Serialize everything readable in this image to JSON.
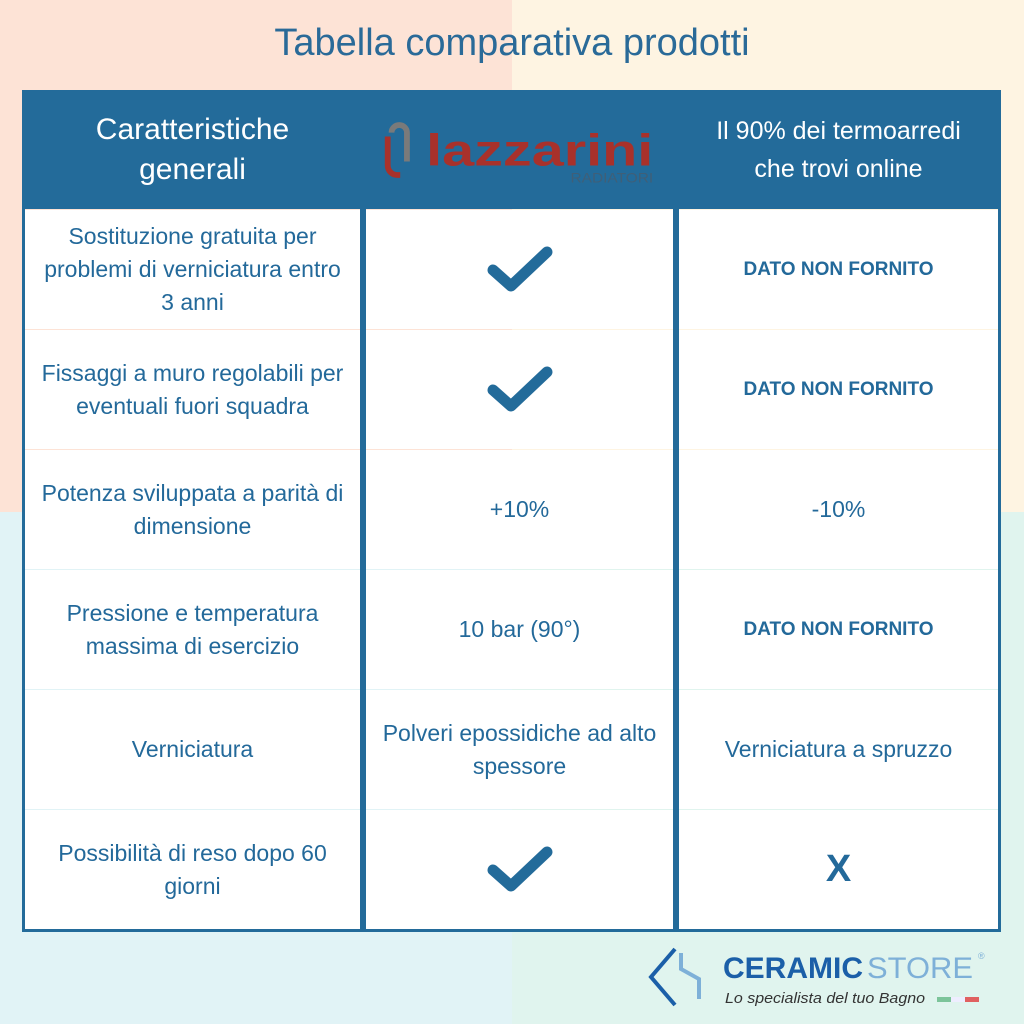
{
  "title": "Tabella comparativa prodotti",
  "colors": {
    "primary": "#236b9a",
    "logo_red": "#a8312b",
    "logo_gray": "#7a7a7a"
  },
  "headers": {
    "col1": "Caratteristiche generali",
    "col2_logo": {
      "brand": "lazzarini",
      "sub": "RADIATORI"
    },
    "col3": "Il 90% dei termoarredi che trovi online"
  },
  "rows": [
    {
      "feature": "Sostituzione gratuita per problemi di verniciatura entro 3 anni",
      "lazzarini": "check-icon",
      "others": "DATO NON FORNITO"
    },
    {
      "feature": "Fissaggi a muro regolabili per eventuali fuori squadra",
      "lazzarini": "check-icon",
      "others": "DATO NON FORNITO"
    },
    {
      "feature": "Potenza sviluppata a parità di dimensione",
      "lazzarini": "+10%",
      "others": "-10%"
    },
    {
      "feature": "Pressione e temperatura massima di esercizio",
      "lazzarini": "10 bar (90°)",
      "others": "DATO NON FORNITO"
    },
    {
      "feature": "Verniciatura",
      "lazzarini": "Polveri epossidiche ad alto spessore",
      "others": "Verniciatura a spruzzo"
    },
    {
      "feature": "Possibilità di reso dopo 60 giorni",
      "lazzarini": "check-icon",
      "others": "X"
    }
  ],
  "footer": {
    "brand_a": "CERAMIC",
    "brand_b": "STORE",
    "reg": "®",
    "tagline": "Lo specialista del tuo Bagno"
  }
}
